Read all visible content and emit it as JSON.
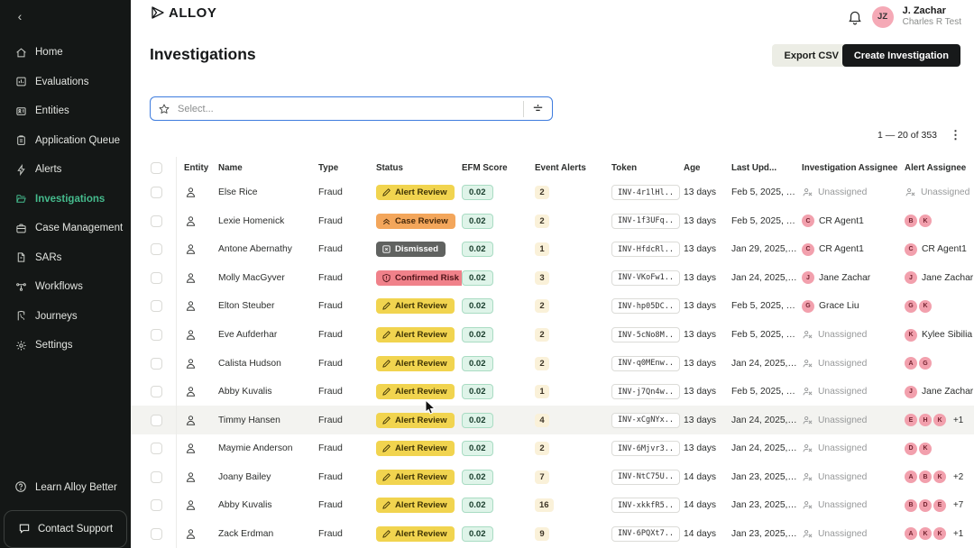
{
  "sidebar": {
    "items": [
      {
        "label": "Home",
        "active": false
      },
      {
        "label": "Evaluations",
        "active": false
      },
      {
        "label": "Entities",
        "active": false
      },
      {
        "label": "Application Queue",
        "active": false
      },
      {
        "label": "Alerts",
        "active": false
      },
      {
        "label": "Investigations",
        "active": true
      },
      {
        "label": "Case Management",
        "active": false
      },
      {
        "label": "SARs",
        "active": false
      },
      {
        "label": "Workflows",
        "active": false
      },
      {
        "label": "Journeys",
        "active": false
      },
      {
        "label": "Settings",
        "active": false
      }
    ],
    "footer": {
      "learn_label": "Learn Alloy Better",
      "contact_label": "Contact Support"
    }
  },
  "topbar": {
    "logo_text": "ALLOY",
    "user": {
      "initials": "JZ",
      "name": "J. Zachar",
      "org": "Charles R Test"
    }
  },
  "header": {
    "title": "Investigations",
    "export_label": "Export CSV",
    "create_label": "Create Investigation"
  },
  "filterbar": {
    "placeholder": "Select..."
  },
  "pagination": {
    "range": "1 — 20 of 353"
  },
  "colors": {
    "accent_green": "#45BB8D",
    "status": {
      "alert_review": {
        "bg": "#F1D44F",
        "fg": "#3E3305"
      },
      "case_review": {
        "bg": "#F3A65B",
        "fg": "#45280A"
      },
      "dismissed": {
        "bg": "#606260",
        "fg": "#FFFFFF"
      },
      "confirmed_risk": {
        "bg": "#F0818A",
        "fg": "#4F1318"
      }
    },
    "efm_badge": {
      "bg": "#DFF4E9",
      "border": "#A9DCC3"
    },
    "alerts_badge": {
      "bg": "#FAF1D9"
    },
    "avatar": {
      "bg": "#F2A0AD",
      "fg": "#73222F"
    }
  },
  "table": {
    "columns": [
      "Entity",
      "Name",
      "Type",
      "Status",
      "EFM Score",
      "Event Alerts",
      "Token",
      "Age",
      "Last Upd...",
      "Investigation Assignee",
      "Alert Assignee"
    ],
    "rows": [
      {
        "name": "Else Rice",
        "type": "Fraud",
        "status_kind": "alert_review",
        "status": "Alert Review",
        "efm": "0.02",
        "alerts": "2",
        "token": "INV-4r1lHl..",
        "age": "13 days",
        "updated": "Feb 5, 2025, …",
        "inv_assignee": {
          "kind": "unassigned",
          "label": "Unassigned"
        },
        "alert_assignee": {
          "kind": "unassigned",
          "label": "Unassigned"
        },
        "highlighted": false
      },
      {
        "name": "Lexie Homenick",
        "type": "Fraud",
        "status_kind": "case_review",
        "status": "Case Review",
        "efm": "0.02",
        "alerts": "2",
        "token": "INV-1f3UFq..",
        "age": "13 days",
        "updated": "Feb 5, 2025, …",
        "inv_assignee": {
          "kind": "user",
          "initial": "C",
          "name": "CR Agent1"
        },
        "alert_assignee": {
          "kind": "avatars",
          "initials": [
            "B",
            "K"
          ],
          "extra": ""
        },
        "highlighted": false
      },
      {
        "name": "Antone Abernathy",
        "type": "Fraud",
        "status_kind": "dismissed",
        "status": "Dismissed",
        "efm": "0.02",
        "alerts": "1",
        "token": "INV-HfdcRl..",
        "age": "13 days",
        "updated": "Jan 29, 2025,…",
        "inv_assignee": {
          "kind": "user",
          "initial": "C",
          "name": "CR Agent1"
        },
        "alert_assignee": {
          "kind": "user",
          "initial": "C",
          "name": "CR Agent1"
        },
        "highlighted": false
      },
      {
        "name": "Molly MacGyver",
        "type": "Fraud",
        "status_kind": "confirmed_risk",
        "status": "Confirmed Risk",
        "efm": "0.02",
        "alerts": "3",
        "token": "INV-VKoFw1..",
        "age": "13 days",
        "updated": "Jan 24, 2025,…",
        "inv_assignee": {
          "kind": "user",
          "initial": "J",
          "name": "Jane Zachar"
        },
        "alert_assignee": {
          "kind": "user",
          "initial": "J",
          "name": "Jane Zachar"
        },
        "highlighted": false
      },
      {
        "name": "Elton Steuber",
        "type": "Fraud",
        "status_kind": "alert_review",
        "status": "Alert Review",
        "efm": "0.02",
        "alerts": "2",
        "token": "INV-hp05DC..",
        "age": "13 days",
        "updated": "Feb 5, 2025, …",
        "inv_assignee": {
          "kind": "user",
          "initial": "G",
          "name": "Grace Liu"
        },
        "alert_assignee": {
          "kind": "avatars",
          "initials": [
            "G",
            "K"
          ],
          "extra": ""
        },
        "highlighted": false
      },
      {
        "name": "Eve Aufderhar",
        "type": "Fraud",
        "status_kind": "alert_review",
        "status": "Alert Review",
        "efm": "0.02",
        "alerts": "2",
        "token": "INV-5cNo8M..",
        "age": "13 days",
        "updated": "Feb 5, 2025, …",
        "inv_assignee": {
          "kind": "unassigned",
          "label": "Unassigned"
        },
        "alert_assignee": {
          "kind": "user",
          "initial": "K",
          "name": "Kylee Sibilia"
        },
        "highlighted": false
      },
      {
        "name": "Calista Hudson",
        "type": "Fraud",
        "status_kind": "alert_review",
        "status": "Alert Review",
        "efm": "0.02",
        "alerts": "2",
        "token": "INV-q0MEnw..",
        "age": "13 days",
        "updated": "Jan 24, 2025,…",
        "inv_assignee": {
          "kind": "unassigned",
          "label": "Unassigned"
        },
        "alert_assignee": {
          "kind": "avatars",
          "initials": [
            "A",
            "G"
          ],
          "extra": ""
        },
        "highlighted": false
      },
      {
        "name": "Abby Kuvalis",
        "type": "Fraud",
        "status_kind": "alert_review",
        "status": "Alert Review",
        "efm": "0.02",
        "alerts": "1",
        "token": "INV-j7Qn4w..",
        "age": "13 days",
        "updated": "Feb 5, 2025, …",
        "inv_assignee": {
          "kind": "unassigned",
          "label": "Unassigned"
        },
        "alert_assignee": {
          "kind": "user",
          "initial": "J",
          "name": "Jane Zachar"
        },
        "highlighted": false
      },
      {
        "name": "Timmy Hansen",
        "type": "Fraud",
        "status_kind": "alert_review",
        "status": "Alert Review",
        "efm": "0.02",
        "alerts": "4",
        "token": "INV-xCgNYx..",
        "age": "13 days",
        "updated": "Jan 24, 2025,…",
        "inv_assignee": {
          "kind": "unassigned",
          "label": "Unassigned"
        },
        "alert_assignee": {
          "kind": "avatars",
          "initials": [
            "E",
            "H",
            "K"
          ],
          "extra": "+1"
        },
        "highlighted": true
      },
      {
        "name": "Maymie Anderson",
        "type": "Fraud",
        "status_kind": "alert_review",
        "status": "Alert Review",
        "efm": "0.02",
        "alerts": "2",
        "token": "INV-6Mjvr3..",
        "age": "13 days",
        "updated": "Jan 24, 2025,…",
        "inv_assignee": {
          "kind": "unassigned",
          "label": "Unassigned"
        },
        "alert_assignee": {
          "kind": "avatars",
          "initials": [
            "D",
            "K"
          ],
          "extra": ""
        },
        "highlighted": false
      },
      {
        "name": "Joany Bailey",
        "type": "Fraud",
        "status_kind": "alert_review",
        "status": "Alert Review",
        "efm": "0.02",
        "alerts": "7",
        "token": "INV-NtC75U..",
        "age": "14 days",
        "updated": "Jan 23, 2025,…",
        "inv_assignee": {
          "kind": "unassigned",
          "label": "Unassigned"
        },
        "alert_assignee": {
          "kind": "avatars",
          "initials": [
            "A",
            "B",
            "K"
          ],
          "extra": "+2"
        },
        "highlighted": false
      },
      {
        "name": "Abby Kuvalis",
        "type": "Fraud",
        "status_kind": "alert_review",
        "status": "Alert Review",
        "efm": "0.02",
        "alerts": "16",
        "token": "INV-xkkfR5..",
        "age": "14 days",
        "updated": "Jan 23, 2025,…",
        "inv_assignee": {
          "kind": "unassigned",
          "label": "Unassigned"
        },
        "alert_assignee": {
          "kind": "avatars",
          "initials": [
            "B",
            "D",
            "E"
          ],
          "extra": "+7"
        },
        "highlighted": false
      },
      {
        "name": "Zack Erdman",
        "type": "Fraud",
        "status_kind": "alert_review",
        "status": "Alert Review",
        "efm": "0.02",
        "alerts": "9",
        "token": "INV-6PQXt7..",
        "age": "14 days",
        "updated": "Jan 23, 2025,…",
        "inv_assignee": {
          "kind": "unassigned",
          "label": "Unassigned"
        },
        "alert_assignee": {
          "kind": "avatars",
          "initials": [
            "A",
            "K",
            "K"
          ],
          "extra": "+1"
        },
        "highlighted": false
      }
    ]
  }
}
